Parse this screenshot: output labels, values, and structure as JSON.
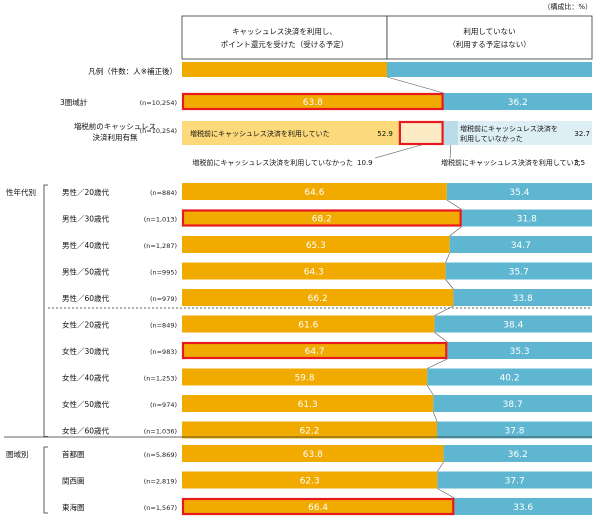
{
  "chart_data": {
    "type": "stacked-bar-horizontal",
    "unit_note": "（構成比：%）",
    "legend_title": "凡例（件数：人※補正後）",
    "series": [
      {
        "name": "キャッシュレス決済を利用し、ポイント還元を受けた（受ける予定）",
        "name_line1": "キャッシュレス決済を利用し、",
        "name_line2": "ポイント還元を受けた（受ける予定）",
        "color": "#f0aa00"
      },
      {
        "name": "利用していない（利用する予定はない）",
        "name_line1": "利用していない",
        "name_line2": "（利用する予定はない）",
        "color": "#5fb6d0"
      }
    ],
    "total_row": {
      "label": "3圏域計",
      "n": "(n=10,254)",
      "values": [
        63.8,
        36.2
      ],
      "highlight": true
    },
    "prior_row": {
      "label_line1": "増税前のキャッシュレス",
      "label_line2": "決済利用有無",
      "n": "(n=10,254)",
      "segments": [
        {
          "label": "増税前にキャッシュレス決済を利用していた",
          "value": "52.9",
          "color": "#fcd97a"
        },
        {
          "label": "増税前にキャッシュレス決済を利用していなかった",
          "value": "10.9",
          "color": "#fdebc6"
        },
        {
          "label_line1": "増税前にキャッシュレス決済を",
          "label_line2": "利用していなかった",
          "value": "32.7",
          "color": "#ddeef4"
        },
        {
          "label": "増税前にキャッシュレス決済を利用していた",
          "value": "3.5",
          "color": "#b9dce8"
        }
      ]
    },
    "groups": [
      {
        "title": "性年代別",
        "rows": [
          {
            "label": "男性／20歳代",
            "n": "(n=884)",
            "values": [
              64.6,
              35.4
            ]
          },
          {
            "label": "男性／30歳代",
            "n": "(n=1,013)",
            "values": [
              68.2,
              31.8
            ],
            "highlight": true
          },
          {
            "label": "男性／40歳代",
            "n": "(n=1,287)",
            "values": [
              65.3,
              34.7
            ]
          },
          {
            "label": "男性／50歳代",
            "n": "(n=995)",
            "values": [
              64.3,
              35.7
            ]
          },
          {
            "label": "男性／60歳代",
            "n": "(n=979)",
            "values": [
              66.2,
              33.8
            ]
          },
          {
            "label": "女性／20歳代",
            "n": "(n=849)",
            "values": [
              61.6,
              38.4
            ]
          },
          {
            "label": "女性／30歳代",
            "n": "(n=983)",
            "values": [
              64.7,
              35.3
            ],
            "highlight": true
          },
          {
            "label": "女性／40歳代",
            "n": "(n=1,253)",
            "values": [
              59.8,
              40.2
            ]
          },
          {
            "label": "女性／50歳代",
            "n": "(n=974)",
            "values": [
              61.3,
              38.7
            ]
          },
          {
            "label": "女性／60歳代",
            "n": "(n=1,036)",
            "values": [
              62.2,
              37.8
            ]
          }
        ]
      },
      {
        "title": "圏域別",
        "rows": [
          {
            "label": "首都圏",
            "n": "(n=5,869)",
            "values": [
              63.8,
              36.2
            ]
          },
          {
            "label": "関西圏",
            "n": "(n=2,819)",
            "values": [
              62.3,
              37.7
            ]
          },
          {
            "label": "東海圏",
            "n": "(n=1,567)",
            "values": [
              66.4,
              33.6
            ],
            "highlight": true
          }
        ]
      }
    ],
    "highlight_color": "#e8191e"
  }
}
